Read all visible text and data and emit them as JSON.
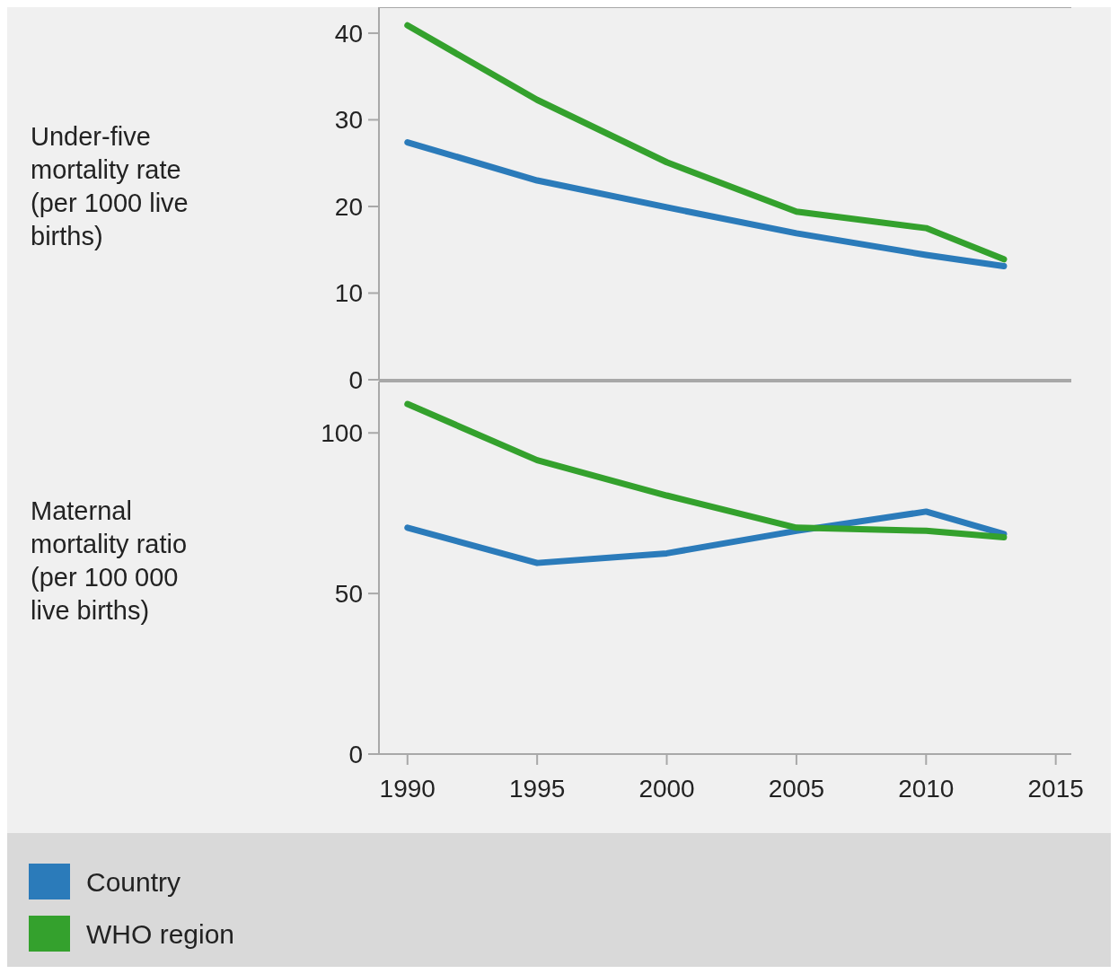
{
  "chart_data": [
    {
      "type": "line",
      "ylabel": "Under-five mortality rate (per 1000 live births)",
      "x": [
        1990,
        1995,
        2000,
        2005,
        2010,
        2013
      ],
      "xlim": [
        1988.9,
        2015.6
      ],
      "ylim": [
        0,
        43
      ],
      "yticks": [
        0,
        10,
        20,
        30,
        40
      ],
      "tick_labels": "y",
      "grid": false,
      "legend": "bottom",
      "series": [
        {
          "name": "Country",
          "color": "#2b7bba",
          "values": [
            27.4,
            23,
            19.9,
            16.9,
            14.4,
            13.1
          ]
        },
        {
          "name": "WHO region",
          "color": "#34a12d",
          "values": [
            40.9,
            32.3,
            25.1,
            19.4,
            17.5,
            13.9
          ]
        }
      ]
    },
    {
      "type": "line",
      "ylabel": "Maternal mortality ratio (per 100 000 live births)",
      "x": [
        1990,
        1995,
        2000,
        2005,
        2010,
        2013
      ],
      "xlim": [
        1988.9,
        2015.6
      ],
      "xticks": [
        1990,
        1995,
        2000,
        2005,
        2010,
        2015
      ],
      "ylim": [
        0,
        116
      ],
      "yticks": [
        0,
        50,
        100
      ],
      "grid": false,
      "series": [
        {
          "color": "#2b7bba",
          "values": [
            70.5,
            59.5,
            62.5,
            69.5,
            75.5,
            68.5
          ]
        },
        {
          "color": "#34a12d",
          "values": [
            109,
            91.5,
            80.5,
            70.5,
            69.5,
            67.5
          ]
        }
      ]
    }
  ]
}
